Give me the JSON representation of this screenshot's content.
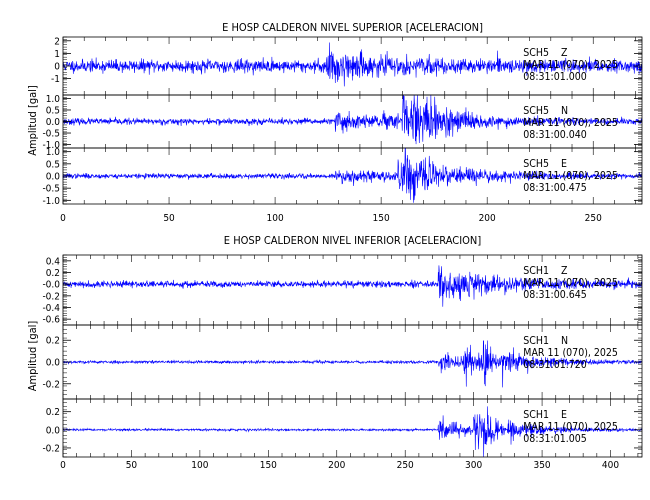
{
  "chart_data": [
    {
      "type": "line",
      "title": "E HOSP CALDERON NIVEL SUPERIOR [ACELERACION]",
      "ylabel": "Amplitud [gal]",
      "xlim": [
        0,
        273
      ],
      "xticks": [
        0,
        50,
        100,
        150,
        200,
        250
      ],
      "line_color": "#0000ff",
      "traces": [
        {
          "station": "SCH5",
          "component": "Z",
          "date": "MAR 11 (070), 2025",
          "time": "08:31:01.000",
          "ylim": [
            -2.3,
            2.3
          ],
          "yticks": [
            -1,
            0,
            1,
            2
          ],
          "yticklabels": [
            "-1",
            "0",
            "1",
            "2"
          ],
          "noise": 0.45,
          "seed": 11,
          "events": [
            [
              124,
              1.9,
              0.25,
              3
            ],
            [
              127,
              0.7,
              0.06,
              25
            ]
          ]
        },
        {
          "station": "SCH5",
          "component": "N",
          "date": "MAR 11 (070), 2025",
          "time": "08:31:00.040",
          "ylim": [
            -1.15,
            1.15
          ],
          "yticks": [
            -1.0,
            -0.5,
            0.0,
            0.5,
            1.0
          ],
          "yticklabels": [
            "-1.0",
            "-0.5",
            "0.0",
            "0.5",
            "1.0"
          ],
          "noise": 0.12,
          "seed": 23,
          "events": [
            [
              128,
              0.35,
              0.04,
              30
            ],
            [
              160,
              0.9,
              0.4,
              7
            ],
            [
              165,
              1.1,
              0.35,
              6
            ],
            [
              172,
              0.7,
              0.3,
              6
            ],
            [
              180,
              0.3,
              0.1,
              15
            ]
          ]
        },
        {
          "station": "SCH5",
          "component": "E",
          "date": "MAR 11 (070), 2025",
          "time": "08:31:00.475",
          "ylim": [
            -1.15,
            1.15
          ],
          "yticks": [
            -1.0,
            -0.5,
            0.0,
            0.5,
            1.0
          ],
          "yticklabels": [
            "-1.0",
            "-0.5",
            "0.0",
            "0.5",
            "1.0"
          ],
          "noise": 0.09,
          "seed": 37,
          "events": [
            [
              128,
              0.22,
              0.05,
              30
            ],
            [
              158,
              0.65,
              0.2,
              6
            ],
            [
              161,
              1.05,
              0.35,
              5
            ],
            [
              170,
              0.4,
              0.15,
              12
            ],
            [
              185,
              0.22,
              0.07,
              20
            ]
          ]
        }
      ]
    },
    {
      "type": "line",
      "title": "E HOSP CALDERON NIVEL INFERIOR [ACELERACION]",
      "ylabel": "Amplitud [gal]",
      "xlim": [
        0,
        423
      ],
      "xticks": [
        0,
        50,
        100,
        150,
        200,
        250,
        300,
        350,
        400
      ],
      "line_color": "#0000ff",
      "traces": [
        {
          "station": "SCH1",
          "component": "Z",
          "date": "MAR 11 (070), 2025",
          "time": "08:31:00.645",
          "ylim": [
            -0.7,
            0.5
          ],
          "yticks": [
            -0.6,
            -0.4,
            -0.2,
            -0.0,
            0.2,
            0.4
          ],
          "yticklabels": [
            "-0.6",
            "-0.4",
            "-0.2",
            "-0.0",
            "0.2",
            "0.4"
          ],
          "noise": 0.05,
          "seed": 41,
          "events": [
            [
              274,
              0.6,
              0.5,
              2
            ],
            [
              276,
              0.25,
              0.08,
              40
            ]
          ]
        },
        {
          "station": "SCH1",
          "component": "N",
          "date": "MAR 11 (070), 2025",
          "time": "08:31:01.720",
          "ylim": [
            -0.34,
            0.34
          ],
          "yticks": [
            -0.2,
            0.0,
            0.2
          ],
          "yticklabels": [
            "-0.2",
            "0.0",
            "0.2"
          ],
          "noise": 0.012,
          "seed": 53,
          "events": [
            [
              274,
              0.08,
              0.02,
              25
            ],
            [
              293,
              0.16,
              0.08,
              8
            ],
            [
              307,
              0.28,
              0.22,
              5
            ],
            [
              320,
              0.08,
              0.03,
              30
            ]
          ]
        },
        {
          "station": "SCH1",
          "component": "E",
          "date": "MAR 11 (070), 2025",
          "time": "08:31:01.005",
          "ylim": [
            -0.3,
            0.34
          ],
          "yticks": [
            -0.2,
            0.0,
            0.2
          ],
          "yticklabels": [
            "-0.2",
            "0.0",
            "0.2"
          ],
          "noise": 0.01,
          "seed": 67,
          "events": [
            [
              274,
              0.12,
              0.02,
              20
            ],
            [
              300,
              0.2,
              0.07,
              8
            ],
            [
              307,
              0.28,
              0.18,
              6
            ],
            [
              325,
              0.08,
              0.02,
              30
            ]
          ]
        }
      ]
    }
  ]
}
